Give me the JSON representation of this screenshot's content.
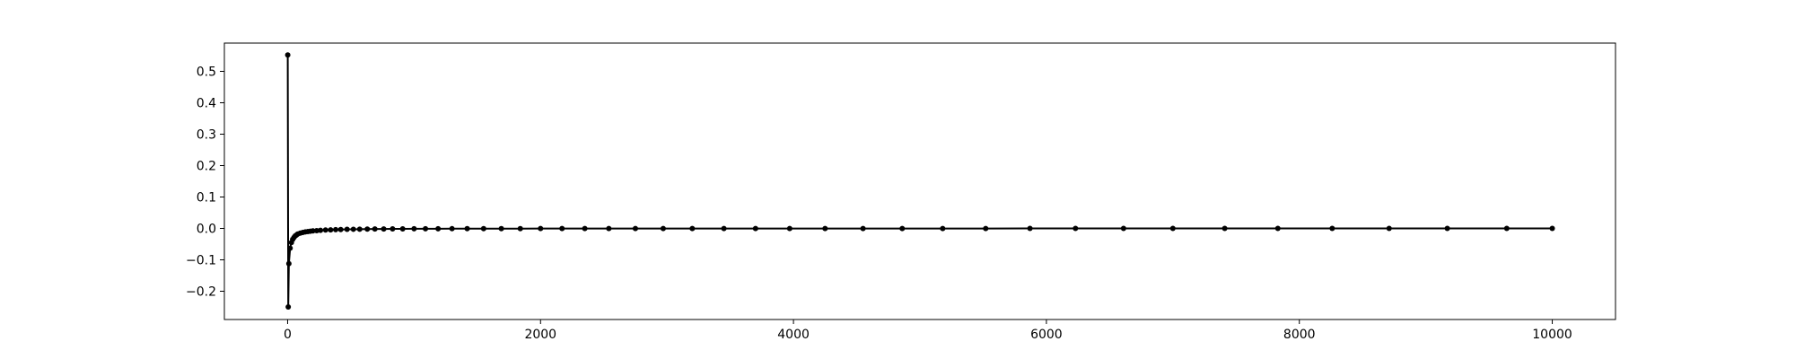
{
  "chart_data": {
    "type": "line",
    "title": "",
    "xlabel": "",
    "ylabel": "",
    "xlim": [
      -500,
      10500
    ],
    "ylim": [
      -0.29,
      0.59
    ],
    "grid": false,
    "legend": "none",
    "x_ticks": [
      0,
      2000,
      4000,
      6000,
      8000,
      10000
    ],
    "x_tick_labels": [
      "0",
      "2000",
      "4000",
      "6000",
      "8000",
      "10000"
    ],
    "y_ticks": [
      -0.2,
      -0.1,
      0.0,
      0.1,
      0.2,
      0.3,
      0.4,
      0.5
    ],
    "y_tick_labels": [
      "−0.2",
      "−0.1",
      "0.0",
      "0.1",
      "0.2",
      "0.3",
      "0.4",
      "0.5"
    ],
    "series": [
      {
        "color": "#000000",
        "marker": "dot",
        "points": [
          [
            1,
            0.552
          ],
          [
            5,
            -0.25
          ],
          [
            10,
            -0.112
          ],
          [
            20,
            -0.063
          ],
          [
            30,
            -0.045
          ],
          [
            40,
            -0.035
          ],
          [
            50,
            -0.029
          ],
          [
            60,
            -0.024
          ],
          [
            70,
            -0.021
          ],
          [
            80,
            -0.018
          ],
          [
            100,
            -0.015
          ],
          [
            120,
            -0.013
          ],
          [
            140,
            -0.011
          ],
          [
            160,
            -0.01
          ],
          [
            180,
            -0.009
          ],
          [
            200,
            -0.008
          ],
          [
            230,
            -0.007
          ],
          [
            260,
            -0.006
          ],
          [
            300,
            -0.005
          ],
          [
            340,
            -0.0045
          ],
          [
            380,
            -0.004
          ],
          [
            420,
            -0.0035
          ],
          [
            470,
            -0.003
          ],
          [
            520,
            -0.0027
          ],
          [
            570,
            -0.0024
          ],
          [
            630,
            -0.0021
          ],
          [
            690,
            -0.0019
          ],
          [
            760,
            -0.0017
          ],
          [
            830,
            -0.0015
          ],
          [
            910,
            -0.0014
          ],
          [
            1000,
            -0.0012
          ],
          [
            1090,
            -0.0011
          ],
          [
            1190,
            -0.001
          ],
          [
            1300,
            -0.0009
          ],
          [
            1420,
            -0.0008
          ],
          [
            1550,
            -0.0007
          ],
          [
            1690,
            -0.0006
          ],
          [
            1840,
            -0.0006
          ],
          [
            2000,
            -0.0005
          ],
          [
            2170,
            -0.0005
          ],
          [
            2350,
            -0.0004
          ],
          [
            2540,
            -0.0004
          ],
          [
            2750,
            -0.0004
          ],
          [
            2970,
            -0.0003
          ],
          [
            3200,
            -0.0003
          ],
          [
            3450,
            -0.0003
          ],
          [
            3700,
            -0.0003
          ],
          [
            3970,
            -0.0002
          ],
          [
            4250,
            -0.0002
          ],
          [
            4550,
            -0.0002
          ],
          [
            4860,
            -0.0002
          ],
          [
            5180,
            -0.0002
          ],
          [
            5520,
            -0.0002
          ],
          [
            5870,
            -0.0001
          ],
          [
            6230,
            -0.0001
          ],
          [
            6610,
            -0.0001
          ],
          [
            7000,
            -0.0001
          ],
          [
            7410,
            -0.0001
          ],
          [
            7830,
            -0.0001
          ],
          [
            8260,
            -0.0001
          ],
          [
            8710,
            -0.0001
          ],
          [
            9170,
            -0.0001
          ],
          [
            9640,
            -0.0001
          ],
          [
            10000,
            -0.0001
          ]
        ]
      }
    ]
  }
}
